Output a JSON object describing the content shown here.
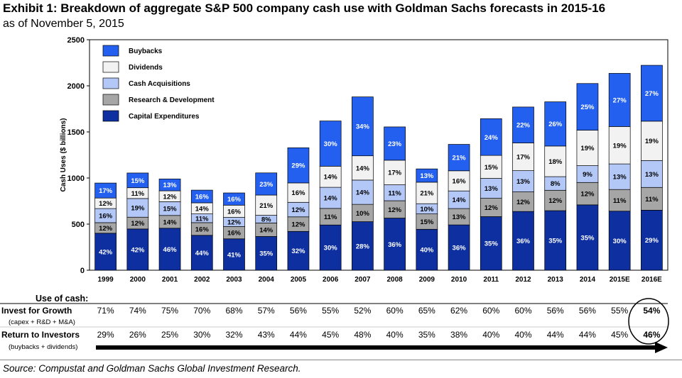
{
  "header": {
    "title": "Exhibit 1: Breakdown of aggregate S&P 500 company cash use with Goldman Sachs forecasts in 2015-16",
    "subtitle": "as of November 5, 2015"
  },
  "chart_data": {
    "type": "bar",
    "stacked": true,
    "ylabel": "Cash Uses ($ billions)",
    "ylim": [
      0,
      2500
    ],
    "yticks": [
      "0",
      "500",
      "1000",
      "1500",
      "2000",
      "2500"
    ],
    "legend_position": "top-left",
    "categories": [
      "1999",
      "2000",
      "2001",
      "2002",
      "2003",
      "2004",
      "2005",
      "2006",
      "2007",
      "2008",
      "2009",
      "2010",
      "2011",
      "2012",
      "2013",
      "2014",
      "2015E",
      "2016E"
    ],
    "totals": [
      955,
      1065,
      990,
      860,
      830,
      1045,
      1315,
      1635,
      1880,
      1570,
      1110,
      1365,
      1660,
      1770,
      1845,
      2025,
      2135,
      2245
    ],
    "series": [
      {
        "name": "Capital Expenditures",
        "color": "#0d2fa0",
        "labels": [
          "42%",
          "42%",
          "46%",
          "44%",
          "41%",
          "35%",
          "32%",
          "30%",
          "28%",
          "36%",
          "40%",
          "36%",
          "35%",
          "36%",
          "35%",
          "35%",
          "30%",
          "29%"
        ]
      },
      {
        "name": "Research & Development",
        "color": "#a6a6a6",
        "labels": [
          "12%",
          "12%",
          "14%",
          "16%",
          "16%",
          "14%",
          "12%",
          "11%",
          "10%",
          "12%",
          "15%",
          "13%",
          "12%",
          "12%",
          "12%",
          "12%",
          "11%",
          "11%"
        ]
      },
      {
        "name": "Cash Acquisitions",
        "color": "#b4c8f8",
        "labels": [
          "16%",
          "19%",
          "15%",
          "11%",
          "12%",
          "8%",
          "12%",
          "14%",
          "14%",
          "11%",
          "10%",
          "14%",
          "13%",
          "13%",
          "8%",
          "9%",
          "13%",
          "13%"
        ]
      },
      {
        "name": "Dividends",
        "color": "#f2f2f2",
        "labels": [
          "12%",
          "11%",
          "12%",
          "14%",
          "16%",
          "21%",
          "16%",
          "14%",
          "14%",
          "17%",
          "21%",
          "16%",
          "15%",
          "17%",
          "18%",
          "19%",
          "19%",
          "19%"
        ]
      },
      {
        "name": "Buybacks",
        "color": "#2460f0",
        "labels": [
          "17%",
          "15%",
          "13%",
          "16%",
          "16%",
          "23%",
          "29%",
          "30%",
          "34%",
          "23%",
          "13%",
          "21%",
          "24%",
          "22%",
          "26%",
          "25%",
          "27%",
          "27%"
        ]
      }
    ]
  },
  "table": {
    "heading": "Use of cash:",
    "rows": [
      {
        "label": "Invest for Growth",
        "sublabel": "(capex + R&D + M&A)",
        "values": [
          "71%",
          "74%",
          "75%",
          "70%",
          "68%",
          "57%",
          "56%",
          "55%",
          "52%",
          "60%",
          "65%",
          "62%",
          "60%",
          "60%",
          "56%",
          "56%",
          "55%",
          "54%"
        ]
      },
      {
        "label": "Return to Investors",
        "sublabel": "(buybacks + dividends)",
        "values": [
          "29%",
          "26%",
          "25%",
          "30%",
          "32%",
          "43%",
          "44%",
          "45%",
          "48%",
          "40%",
          "35%",
          "38%",
          "40%",
          "40%",
          "44%",
          "44%",
          "45%",
          "46%"
        ]
      }
    ]
  },
  "footer": {
    "source": "Source: Compustat and Goldman Sachs Global Investment Research."
  }
}
